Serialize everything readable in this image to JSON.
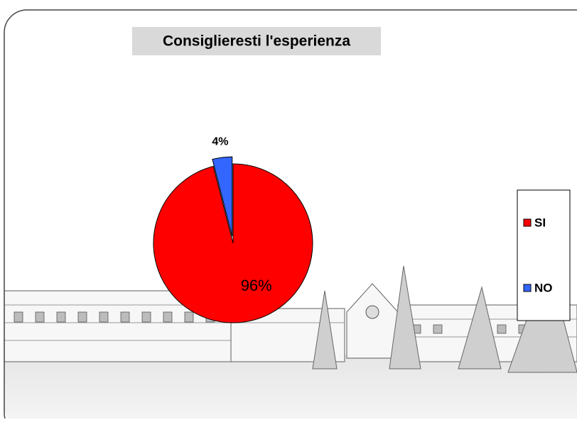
{
  "chart_data": {
    "type": "pie",
    "title": "Consiglieresti l'esperienza",
    "categories": [
      "SI",
      "NO"
    ],
    "values": [
      96,
      4
    ],
    "value_labels": [
      "96%",
      "4%"
    ],
    "colors": [
      "#ff0000",
      "#3366ff"
    ],
    "legend": "right"
  }
}
